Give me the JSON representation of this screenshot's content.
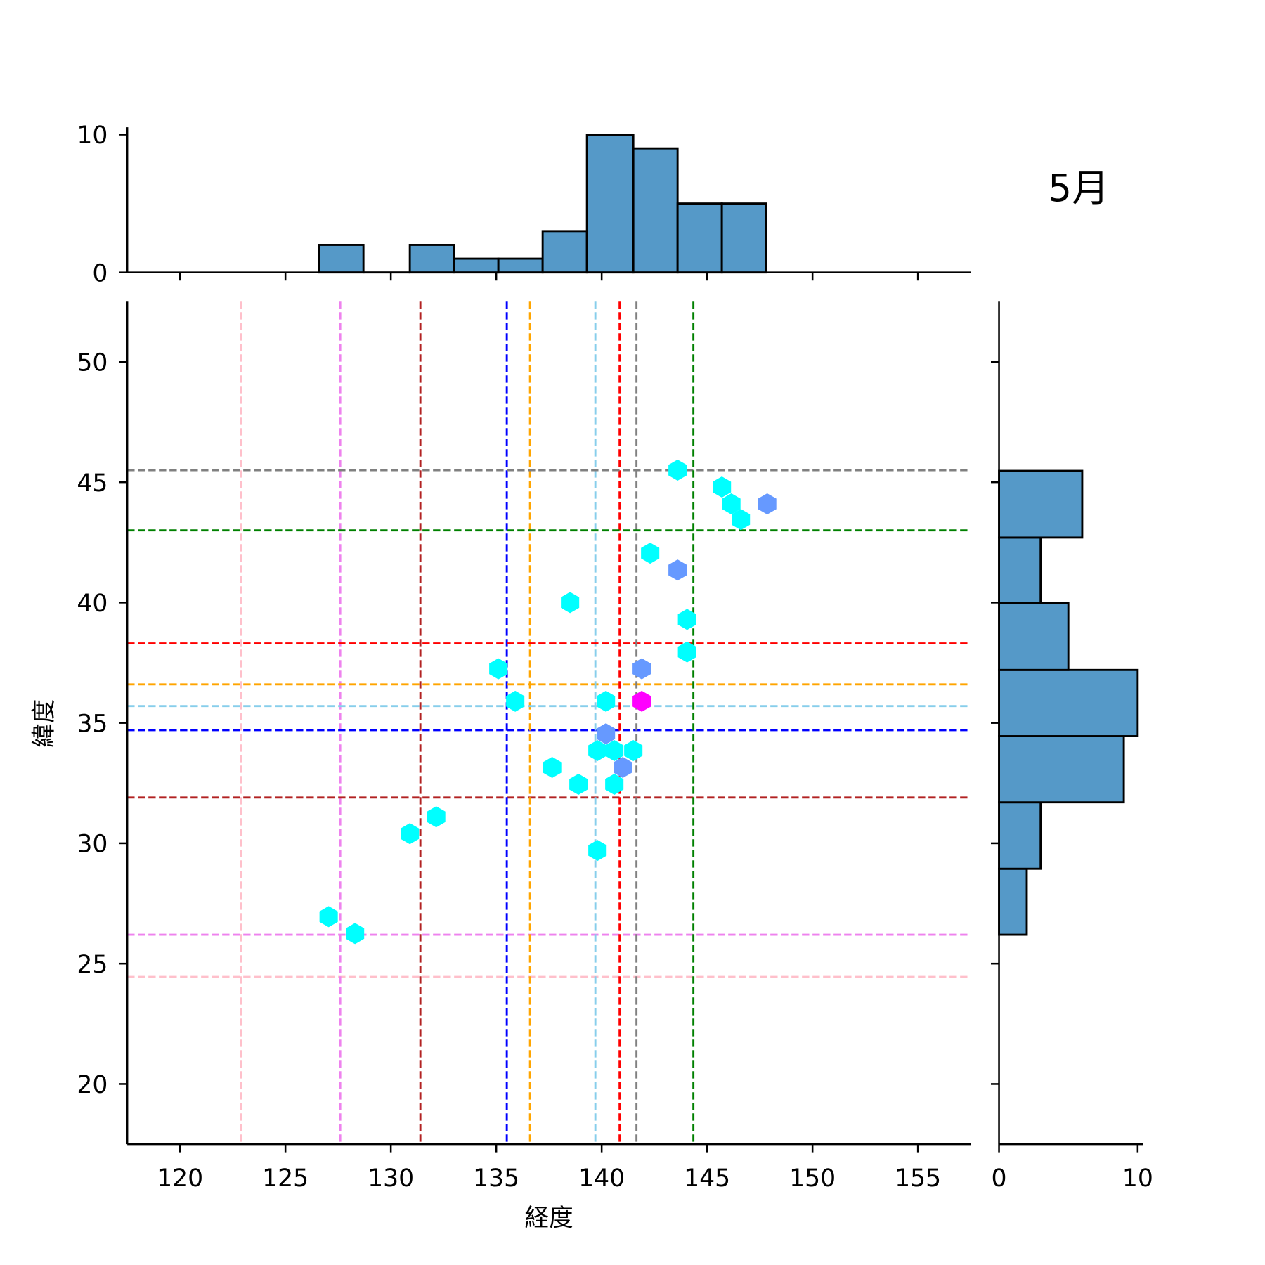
{
  "chart_data": {
    "type": "hexbin-jointplot",
    "title": "5月",
    "xlabel": "経度",
    "ylabel": "緯度",
    "xlim": [
      117.5,
      157.5
    ],
    "ylim": [
      17.5,
      52.5
    ],
    "xticks": [
      120,
      125,
      130,
      135,
      140,
      145,
      150,
      155
    ],
    "yticks": [
      20,
      25,
      30,
      35,
      40,
      45,
      50
    ],
    "hex_colors": {
      "low": "#00ffff",
      "mid": "#6699ff",
      "high": "#ff00ff"
    },
    "hexbins": [
      {
        "x": 143.6,
        "y": 45.5,
        "level": "low"
      },
      {
        "x": 145.7,
        "y": 44.8,
        "level": "low"
      },
      {
        "x": 146.15,
        "y": 44.1,
        "level": "low"
      },
      {
        "x": 146.6,
        "y": 43.45,
        "level": "low"
      },
      {
        "x": 147.85,
        "y": 44.1,
        "level": "mid"
      },
      {
        "x": 142.3,
        "y": 42.05,
        "level": "low"
      },
      {
        "x": 143.6,
        "y": 41.35,
        "level": "mid"
      },
      {
        "x": 138.5,
        "y": 40.0,
        "level": "low"
      },
      {
        "x": 144.05,
        "y": 39.3,
        "level": "low"
      },
      {
        "x": 144.05,
        "y": 37.95,
        "level": "low"
      },
      {
        "x": 135.1,
        "y": 37.25,
        "level": "low"
      },
      {
        "x": 141.9,
        "y": 37.25,
        "level": "mid"
      },
      {
        "x": 135.9,
        "y": 35.9,
        "level": "low"
      },
      {
        "x": 140.2,
        "y": 35.9,
        "level": "low"
      },
      {
        "x": 141.9,
        "y": 35.9,
        "level": "high"
      },
      {
        "x": 140.2,
        "y": 34.55,
        "level": "mid"
      },
      {
        "x": 139.8,
        "y": 33.85,
        "level": "low"
      },
      {
        "x": 140.6,
        "y": 33.85,
        "level": "low"
      },
      {
        "x": 141.5,
        "y": 33.85,
        "level": "low"
      },
      {
        "x": 141.0,
        "y": 33.15,
        "level": "mid"
      },
      {
        "x": 137.65,
        "y": 33.15,
        "level": "low"
      },
      {
        "x": 138.9,
        "y": 32.45,
        "level": "low"
      },
      {
        "x": 140.6,
        "y": 32.45,
        "level": "low"
      },
      {
        "x": 132.15,
        "y": 31.1,
        "level": "low"
      },
      {
        "x": 130.9,
        "y": 30.4,
        "level": "low"
      },
      {
        "x": 139.8,
        "y": 29.7,
        "level": "low"
      },
      {
        "x": 127.05,
        "y": 26.95,
        "level": "low"
      },
      {
        "x": 128.3,
        "y": 26.25,
        "level": "low"
      }
    ],
    "reference_lines": [
      {
        "color": "#ffc0cb",
        "lon": 122.9,
        "lat": 24.45
      },
      {
        "color": "#ee82ee",
        "lon": 127.6,
        "lat": 26.2
      },
      {
        "color": "#b22222",
        "lon": 131.4,
        "lat": 31.9
      },
      {
        "color": "#0000ff",
        "lon": 135.5,
        "lat": 34.7
      },
      {
        "color": "#ffa500",
        "lon": 136.6,
        "lat": 36.6
      },
      {
        "color": "#87ceeb",
        "lon": 139.7,
        "lat": 35.7
      },
      {
        "color": "#ff0000",
        "lon": 140.85,
        "lat": 38.3
      },
      {
        "color": "#808080",
        "lon": 141.65,
        "lat": 45.5
      },
      {
        "color": "#008000",
        "lon": 144.35,
        "lat": 43.0
      }
    ],
    "top_hist": {
      "bin_edges": [
        126.6,
        128.7,
        130.9,
        133.0,
        135.1,
        137.2,
        139.3,
        141.5,
        143.6,
        145.7,
        147.8
      ],
      "counts": [
        2,
        0,
        2,
        1,
        1,
        3,
        10,
        9,
        5,
        5
      ],
      "yticks": [
        0,
        10
      ],
      "ylim": [
        0,
        10.5
      ]
    },
    "right_hist": {
      "bin_edges": [
        26.2,
        28.94,
        31.7,
        34.45,
        37.2,
        39.97,
        42.7,
        45.47
      ],
      "counts": [
        2,
        3,
        9,
        10,
        5,
        3,
        6
      ],
      "xticks": [
        0,
        10
      ],
      "xlim": [
        0,
        10.5
      ]
    },
    "bar_color": "#5599c8"
  }
}
